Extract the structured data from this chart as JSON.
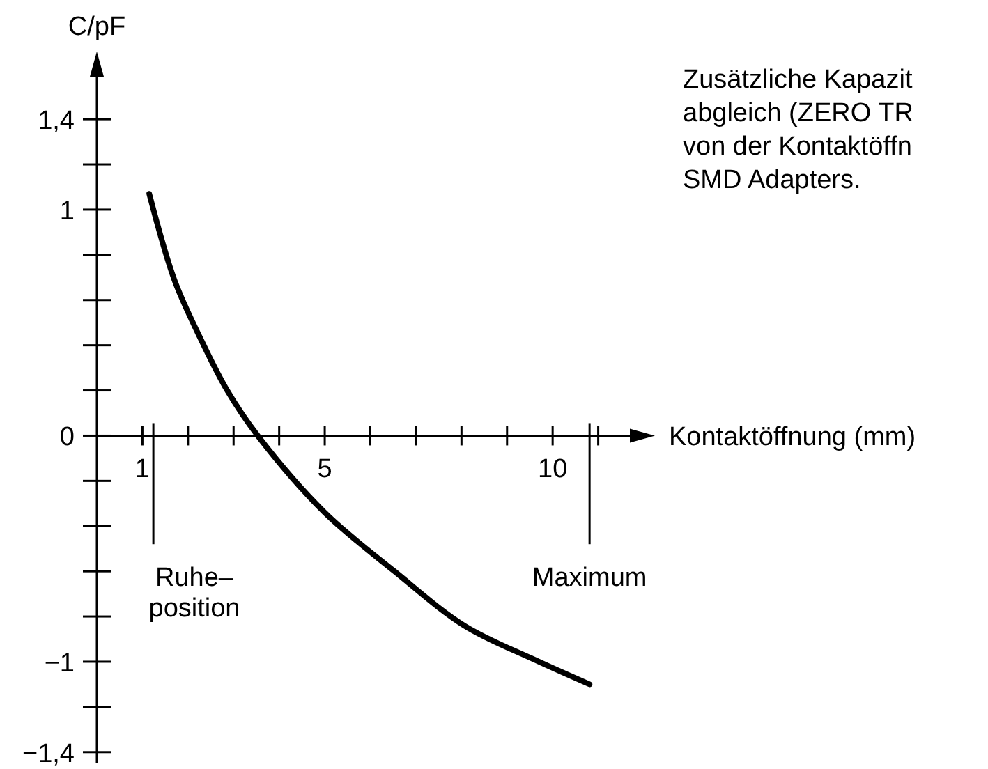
{
  "chart_data": {
    "type": "line",
    "xlabel": "Kontaktöffnung (mm)",
    "ylabel": "C/pF",
    "x": [
      1.15,
      1.7,
      2.25,
      2.86,
      3.53,
      5.0,
      6.53,
      8.06,
      9.59,
      10.81
    ],
    "series": [
      {
        "color": "#000000",
        "values": [
          1.07,
          0.69,
          0.44,
          0.2,
          0,
          -0.34,
          -0.6,
          -0.84,
          -0.99,
          -1.1
        ]
      }
    ],
    "xlim": [
      0,
      12
    ],
    "ylim": [
      -1.45,
      1.65
    ],
    "xticks": [
      1,
      {
        "value": 2,
        "label": null
      },
      {
        "value": 3,
        "label": null
      },
      {
        "value": 4,
        "label": null
      },
      5,
      {
        "value": 6,
        "label": null
      },
      {
        "value": 7,
        "label": null
      },
      {
        "value": 8,
        "label": null
      },
      {
        "value": 9,
        "label": null
      },
      10,
      {
        "value": 11,
        "label": null
      }
    ],
    "yticks": [
      {
        "value": -1.4,
        "label": "−1,4"
      },
      {
        "value": -1.2,
        "label": null
      },
      {
        "value": -1,
        "label": "−1"
      },
      {
        "value": -0.8,
        "label": null
      },
      {
        "value": -0.6,
        "label": null
      },
      {
        "value": -0.4,
        "label": null
      },
      {
        "value": -0.2,
        "label": null
      },
      0,
      {
        "value": 0.2,
        "label": null
      },
      {
        "value": 0.4,
        "label": null
      },
      {
        "value": 0.6,
        "label": null
      },
      {
        "value": 0.8,
        "label": null
      },
      1,
      {
        "value": 1.2,
        "label": null
      },
      {
        "value": 1.4,
        "label": "1,4"
      }
    ],
    "ref_lines": [
      {
        "axis": "x",
        "value": 1.24,
        "label": "Ruhe–\nposition"
      },
      {
        "axis": "x",
        "value": 10.81,
        "label": "Maximum"
      }
    ],
    "annotations": [
      "Zusätzliche Kapazit\nabgleich (ZERO TR\nvon der Kontaktöffn\nSMD Adapters."
    ]
  }
}
